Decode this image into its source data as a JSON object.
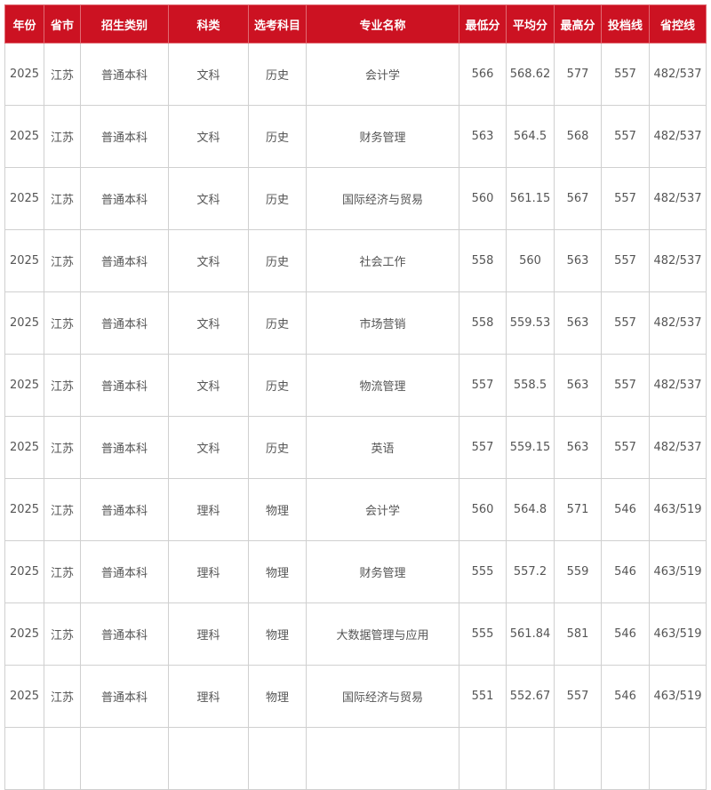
{
  "headers": [
    "年份",
    "省市",
    "招生类别",
    "科类",
    "选考科目",
    "专业名称",
    "最低分",
    "平均分",
    "最高分",
    "投档线",
    "省控线"
  ],
  "colors": {
    "header_bg": "#cc1222",
    "text": "#555555"
  },
  "rows": [
    [
      "2025",
      "江苏",
      "普通本科",
      "文科",
      "历史",
      "会计学",
      "566",
      "568.62",
      "577",
      "557",
      "482/537"
    ],
    [
      "2025",
      "江苏",
      "普通本科",
      "文科",
      "历史",
      "财务管理",
      "563",
      "564.5",
      "568",
      "557",
      "482/537"
    ],
    [
      "2025",
      "江苏",
      "普通本科",
      "文科",
      "历史",
      "国际经济与贸易",
      "560",
      "561.15",
      "567",
      "557",
      "482/537"
    ],
    [
      "2025",
      "江苏",
      "普通本科",
      "文科",
      "历史",
      "社会工作",
      "558",
      "560",
      "563",
      "557",
      "482/537"
    ],
    [
      "2025",
      "江苏",
      "普通本科",
      "文科",
      "历史",
      "市场营销",
      "558",
      "559.53",
      "563",
      "557",
      "482/537"
    ],
    [
      "2025",
      "江苏",
      "普通本科",
      "文科",
      "历史",
      "物流管理",
      "557",
      "558.5",
      "563",
      "557",
      "482/537"
    ],
    [
      "2025",
      "江苏",
      "普通本科",
      "文科",
      "历史",
      "英语",
      "557",
      "559.15",
      "563",
      "557",
      "482/537"
    ],
    [
      "2025",
      "江苏",
      "普通本科",
      "理科",
      "物理",
      "会计学",
      "560",
      "564.8",
      "571",
      "546",
      "463/519"
    ],
    [
      "2025",
      "江苏",
      "普通本科",
      "理科",
      "物理",
      "财务管理",
      "555",
      "557.2",
      "559",
      "546",
      "463/519"
    ],
    [
      "2025",
      "江苏",
      "普通本科",
      "理科",
      "物理",
      "大数据管理与应用",
      "555",
      "561.84",
      "581",
      "546",
      "463/519"
    ],
    [
      "2025",
      "江苏",
      "普通本科",
      "理科",
      "物理",
      "国际经济与贸易",
      "551",
      "552.67",
      "557",
      "546",
      "463/519"
    ]
  ]
}
